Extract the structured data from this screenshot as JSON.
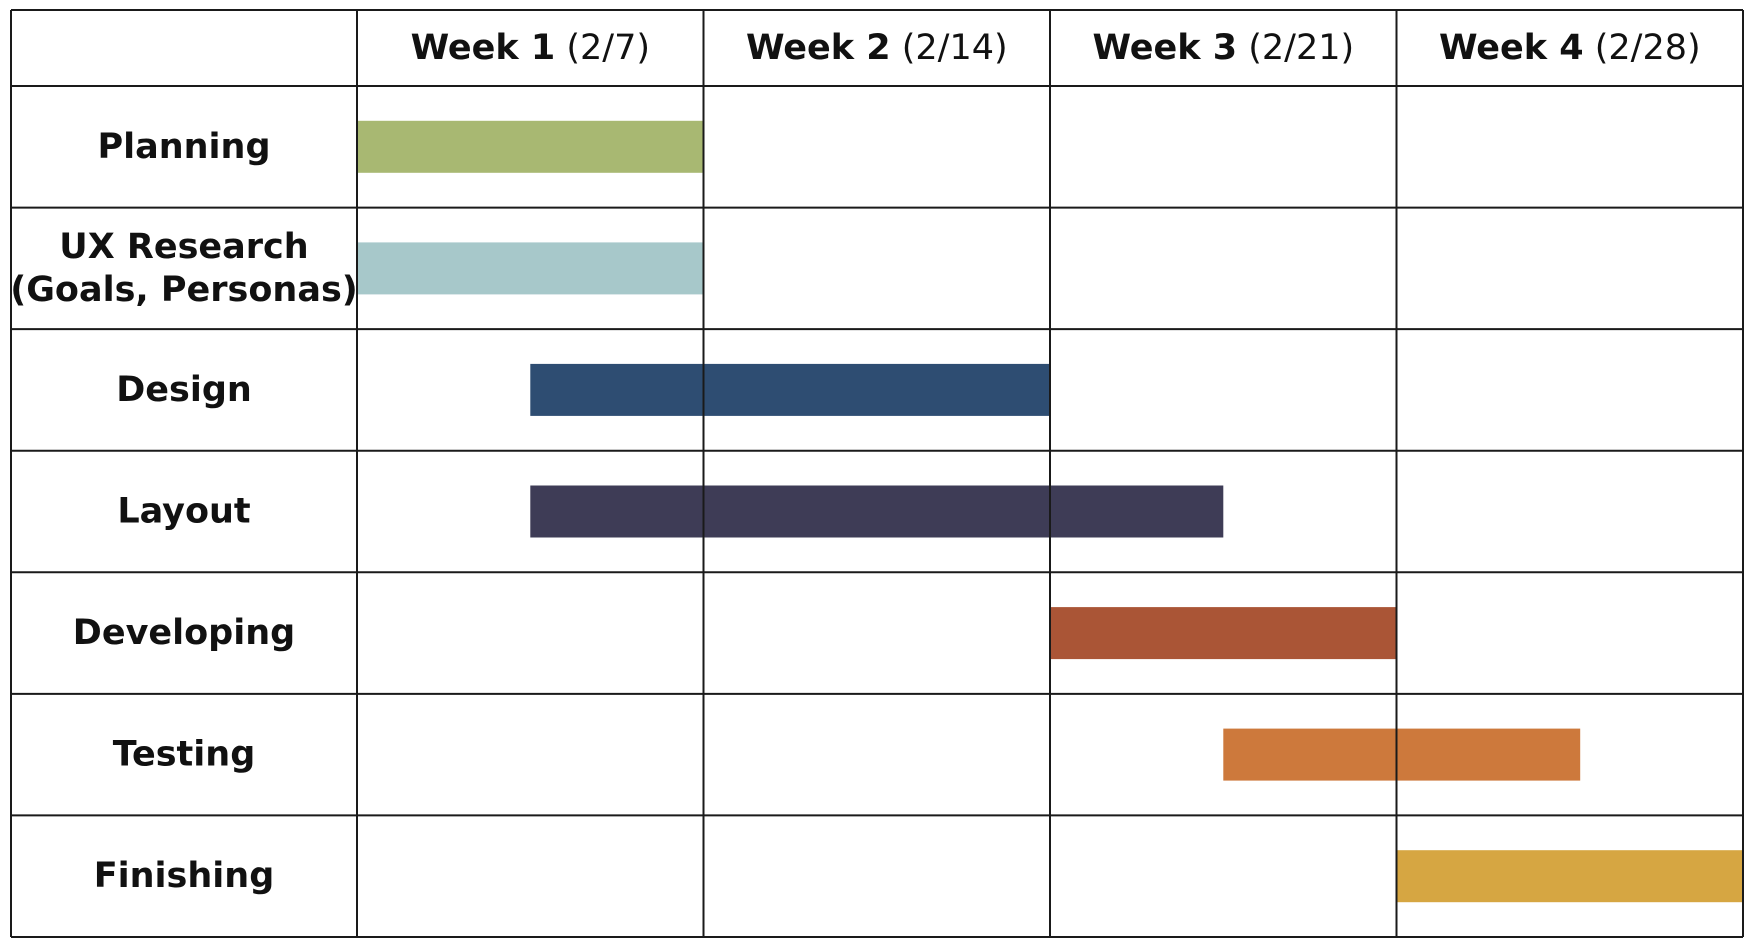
{
  "chart_data": {
    "type": "gantt",
    "columns": [
      {
        "week": "Week 1",
        "date": "(2/7)"
      },
      {
        "week": "Week 2",
        "date": "(2/14)"
      },
      {
        "week": "Week 3",
        "date": "(2/21)"
      },
      {
        "week": "Week 4",
        "date": "(2/28)"
      }
    ],
    "tasks": [
      {
        "label_lines": [
          "Planning"
        ],
        "start_week": 0.0,
        "end_week": 1.0,
        "color": "#a8b872"
      },
      {
        "label_lines": [
          "UX Research",
          "(Goals, Personas)"
        ],
        "start_week": 0.0,
        "end_week": 1.0,
        "color": "#a7c8ca"
      },
      {
        "label_lines": [
          "Design"
        ],
        "start_week": 0.5,
        "end_week": 2.0,
        "color": "#2e4d72"
      },
      {
        "label_lines": [
          "Layout"
        ],
        "start_week": 0.5,
        "end_week": 2.5,
        "color": "#3e3c56"
      },
      {
        "label_lines": [
          "Developing"
        ],
        "start_week": 2.0,
        "end_week": 3.0,
        "color": "#aa5536"
      },
      {
        "label_lines": [
          "Testing"
        ],
        "start_week": 2.5,
        "end_week": 3.53,
        "color": "#cd793c"
      },
      {
        "label_lines": [
          "Finishing"
        ],
        "start_week": 3.0,
        "end_week": 4.0,
        "color": "#d6a642"
      }
    ]
  }
}
